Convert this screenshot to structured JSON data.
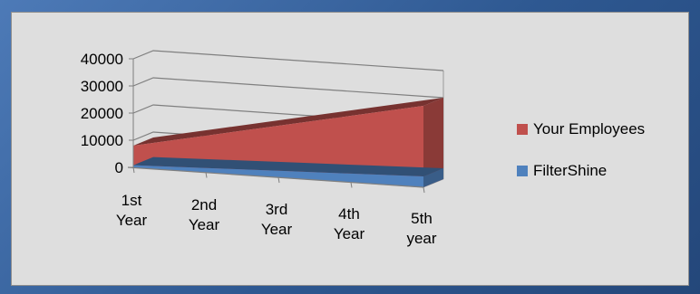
{
  "chart_data": {
    "type": "area",
    "three_d": true,
    "categories": [
      "1st Year",
      "2nd Year",
      "3rd Year",
      "4th Year",
      "5th year"
    ],
    "series": [
      {
        "name": "Your Employees",
        "color": "#c0504d",
        "values": [
          8000,
          13500,
          19000,
          24500,
          30000
        ]
      },
      {
        "name": "FilterShine",
        "color": "#4f81bd",
        "values": [
          800,
          1600,
          2400,
          3200,
          4000
        ]
      }
    ],
    "y_ticks": [
      "0",
      "10000",
      "20000",
      "30000",
      "40000"
    ],
    "ylim": [
      0,
      40000
    ],
    "gridlines": true,
    "legend_position": "right"
  }
}
